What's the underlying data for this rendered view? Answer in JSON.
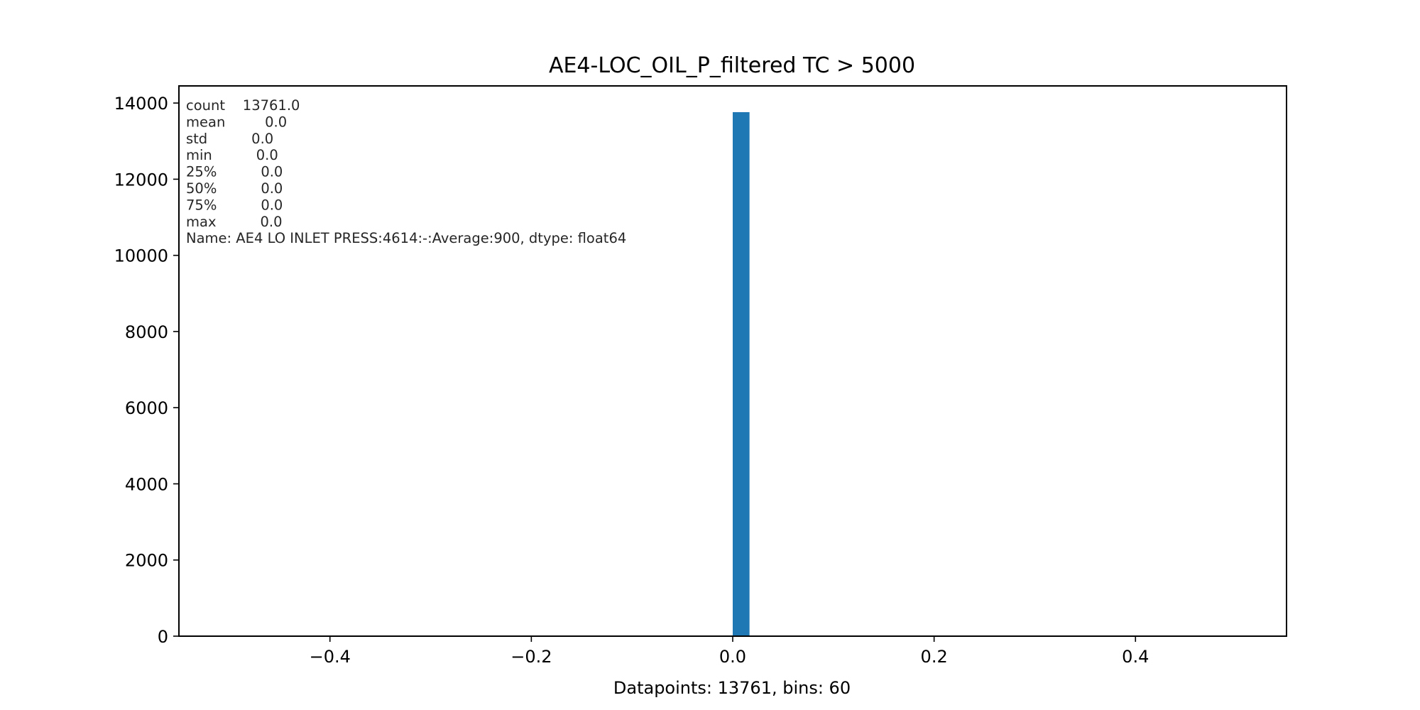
{
  "chart_data": {
    "type": "bar",
    "title": "AE4-LOC_OIL_P_filtered TC > 5000",
    "xlabel": "Datapoints: 13761, bins: 60",
    "ylabel": "",
    "xlim": [
      -0.55,
      0.55
    ],
    "ylim": [
      0,
      14450
    ],
    "x_ticks": [
      -0.4,
      -0.2,
      0.0,
      0.2,
      0.4
    ],
    "x_tick_labels": [
      "−0.4",
      "−0.2",
      "0.0",
      "0.2",
      "0.4"
    ],
    "y_ticks": [
      0,
      2000,
      4000,
      6000,
      8000,
      10000,
      12000,
      14000
    ],
    "y_tick_labels": [
      "0",
      "2000",
      "4000",
      "6000",
      "8000",
      "10000",
      "12000",
      "14000"
    ],
    "bars": [
      {
        "x_start": 0.0,
        "x_end": 0.01667,
        "value": 13761
      }
    ],
    "bar_color": "#1f77b4",
    "grid": false,
    "stats_annotation": [
      "count    13761.0",
      "mean         0.0",
      "std          0.0",
      "min          0.0",
      "25%          0.0",
      "50%          0.0",
      "75%          0.0",
      "max          0.0",
      "Name: AE4 LO INLET PRESS:4614:-:Average:900, dtype: float64"
    ]
  }
}
